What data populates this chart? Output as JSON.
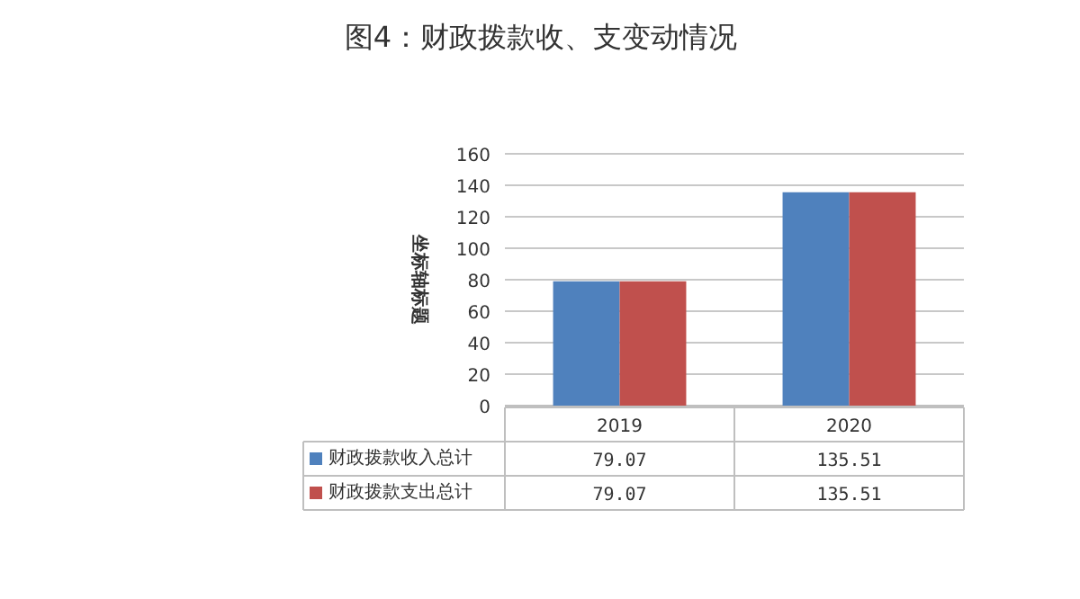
{
  "chart_data": {
    "type": "bar",
    "title": "图4：财政拨款收、支变动情况",
    "ylabel": "坐标轴标题",
    "categories": [
      "2019",
      "2020"
    ],
    "series": [
      {
        "name": "财政拨款收入总计",
        "color": "#4f81bd",
        "values": [
          79.07,
          135.51
        ]
      },
      {
        "name": "财政拨款支出总计",
        "color": "#c0504d",
        "values": [
          79.07,
          135.51
        ]
      }
    ],
    "ylim": [
      0,
      160
    ],
    "yticks": [
      0,
      20,
      40,
      60,
      80,
      100,
      120,
      140,
      160
    ],
    "grid": "y",
    "legend": "bottom",
    "data_labels": true
  }
}
